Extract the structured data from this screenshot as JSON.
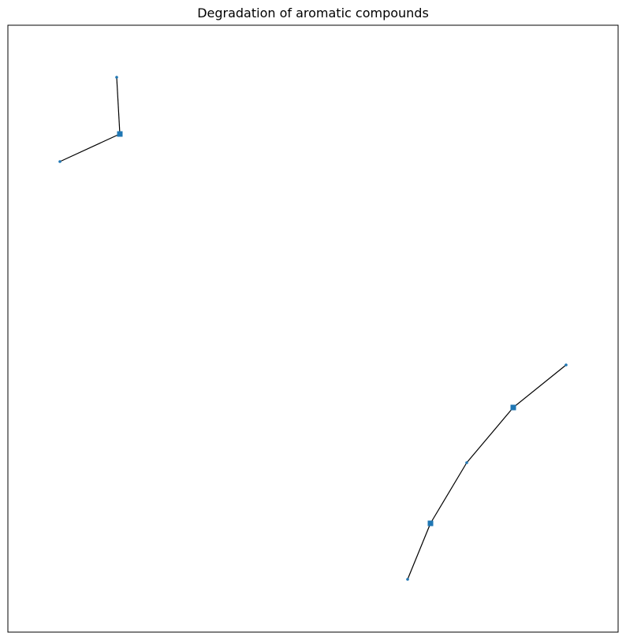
{
  "title": "Degradation of aromatic compounds",
  "colors": {
    "node": "#1f77b4",
    "edge": "#000000",
    "frame": "#000000",
    "background": "#ffffff"
  },
  "graph": {
    "node_shapes": {
      "small": "circle",
      "large": "square"
    },
    "components": [
      {
        "nodes": [
          {
            "id": "a1",
            "type": "small"
          },
          {
            "id": "a2",
            "type": "large"
          },
          {
            "id": "a3",
            "type": "small"
          }
        ],
        "edges": [
          [
            "a1",
            "a2"
          ],
          [
            "a2",
            "a3"
          ]
        ]
      },
      {
        "nodes": [
          {
            "id": "b1",
            "type": "small"
          },
          {
            "id": "b2",
            "type": "large"
          },
          {
            "id": "b3",
            "type": "small"
          },
          {
            "id": "b4",
            "type": "large"
          },
          {
            "id": "b5",
            "type": "small"
          }
        ],
        "edges": [
          [
            "b1",
            "b2"
          ],
          [
            "b2",
            "b3"
          ],
          [
            "b3",
            "b4"
          ],
          [
            "b4",
            "b5"
          ]
        ]
      }
    ]
  }
}
